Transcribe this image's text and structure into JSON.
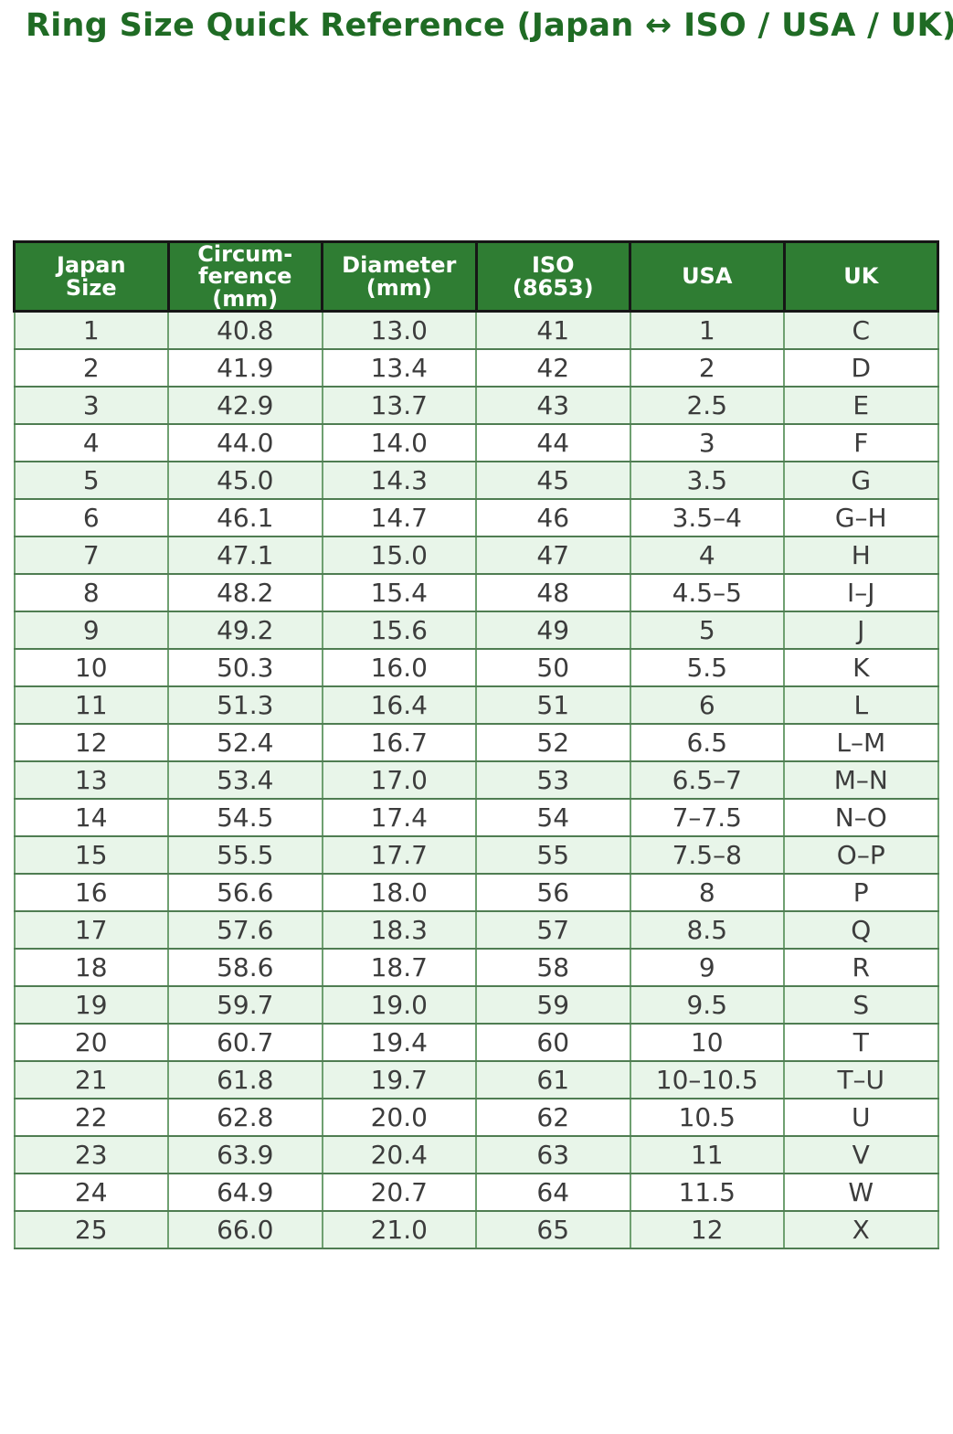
{
  "page_title": "Ring Size Quick Reference (Japan ↔ ISO / USA / UK)",
  "colors": {
    "title_text": "#1f6b24",
    "header_bg": "#2f7d33",
    "header_text": "#ffffff",
    "header_border": "#161616",
    "row_alt_bg": "#e8f5e9",
    "row_bg": "#ffffff",
    "body_border_vertical": "#6fa071",
    "body_border_horizontal": "#4f7d52",
    "body_text": "#3c3c3c"
  },
  "chart_data": {
    "type": "table",
    "title": "Ring Size Quick Reference (Japan ↔ ISO / USA / UK)",
    "columns": [
      "Japan Size",
      "Circum-ference (mm)",
      "Diameter (mm)",
      "ISO (8653)",
      "USA",
      "UK"
    ],
    "column_ids": [
      "japan-size",
      "circumference-mm",
      "diameter-mm",
      "iso-8653",
      "usa",
      "uk"
    ],
    "header_display": [
      "Japan\nSize",
      "Circum-\nference\n(mm)",
      "Diameter\n(mm)",
      "ISO\n(8653)",
      "USA",
      "UK"
    ],
    "rows": [
      [
        "1",
        "40.8",
        "13.0",
        "41",
        "1",
        "C"
      ],
      [
        "2",
        "41.9",
        "13.4",
        "42",
        "2",
        "D"
      ],
      [
        "3",
        "42.9",
        "13.7",
        "43",
        "2.5",
        "E"
      ],
      [
        "4",
        "44.0",
        "14.0",
        "44",
        "3",
        "F"
      ],
      [
        "5",
        "45.0",
        "14.3",
        "45",
        "3.5",
        "G"
      ],
      [
        "6",
        "46.1",
        "14.7",
        "46",
        "3.5–4",
        "G–H"
      ],
      [
        "7",
        "47.1",
        "15.0",
        "47",
        "4",
        "H"
      ],
      [
        "8",
        "48.2",
        "15.4",
        "48",
        "4.5–5",
        "I–J"
      ],
      [
        "9",
        "49.2",
        "15.6",
        "49",
        "5",
        "J"
      ],
      [
        "10",
        "50.3",
        "16.0",
        "50",
        "5.5",
        "K"
      ],
      [
        "11",
        "51.3",
        "16.4",
        "51",
        "6",
        "L"
      ],
      [
        "12",
        "52.4",
        "16.7",
        "52",
        "6.5",
        "L–M"
      ],
      [
        "13",
        "53.4",
        "17.0",
        "53",
        "6.5–7",
        "M–N"
      ],
      [
        "14",
        "54.5",
        "17.4",
        "54",
        "7–7.5",
        "N–O"
      ],
      [
        "15",
        "55.5",
        "17.7",
        "55",
        "7.5–8",
        "O–P"
      ],
      [
        "16",
        "56.6",
        "18.0",
        "56",
        "8",
        "P"
      ],
      [
        "17",
        "57.6",
        "18.3",
        "57",
        "8.5",
        "Q"
      ],
      [
        "18",
        "58.6",
        "18.7",
        "58",
        "9",
        "R"
      ],
      [
        "19",
        "59.7",
        "19.0",
        "59",
        "9.5",
        "S"
      ],
      [
        "20",
        "60.7",
        "19.4",
        "60",
        "10",
        "T"
      ],
      [
        "21",
        "61.8",
        "19.7",
        "61",
        "10–10.5",
        "T–U"
      ],
      [
        "22",
        "62.8",
        "20.0",
        "62",
        "10.5",
        "U"
      ],
      [
        "23",
        "63.9",
        "20.4",
        "63",
        "11",
        "V"
      ],
      [
        "24",
        "64.9",
        "20.7",
        "64",
        "11.5",
        "W"
      ],
      [
        "25",
        "66.0",
        "21.0",
        "65",
        "12",
        "X"
      ]
    ]
  }
}
